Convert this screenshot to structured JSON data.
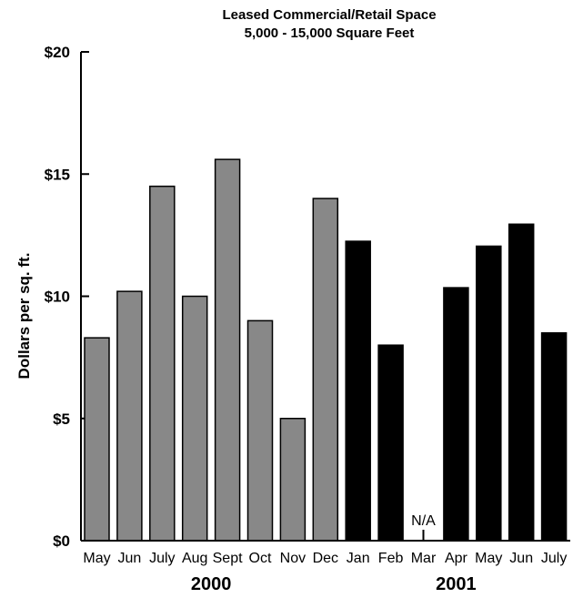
{
  "chart_data": {
    "type": "bar",
    "title": "Leased Commercial/Retail Space",
    "subtitle": "5,000 - 15,000 Square Feet",
    "ylabel": "Dollars per sq. ft.",
    "xlabel": "",
    "ylim": [
      0,
      20
    ],
    "yticks": [
      "$0",
      "$5",
      "$10",
      "$15",
      "$20"
    ],
    "ytick_values": [
      0,
      5,
      10,
      15,
      20
    ],
    "categories": [
      "May",
      "Jun",
      "July",
      "Aug",
      "Sept",
      "Oct",
      "Nov",
      "Dec",
      "Jan",
      "Feb",
      "Mar",
      "Apr",
      "May",
      "Jun",
      "July"
    ],
    "values": [
      8.3,
      10.2,
      14.5,
      10.0,
      15.6,
      9.0,
      5.0,
      14.0,
      12.25,
      8.0,
      null,
      10.35,
      12.05,
      12.95,
      8.5
    ],
    "year_groups": [
      {
        "label": "2000",
        "start": 0,
        "end": 7,
        "color": "#888888"
      },
      {
        "label": "2001",
        "start": 8,
        "end": 14,
        "color": "#000000"
      }
    ],
    "missing_label": "N/A",
    "grid": false,
    "legend": "none"
  }
}
